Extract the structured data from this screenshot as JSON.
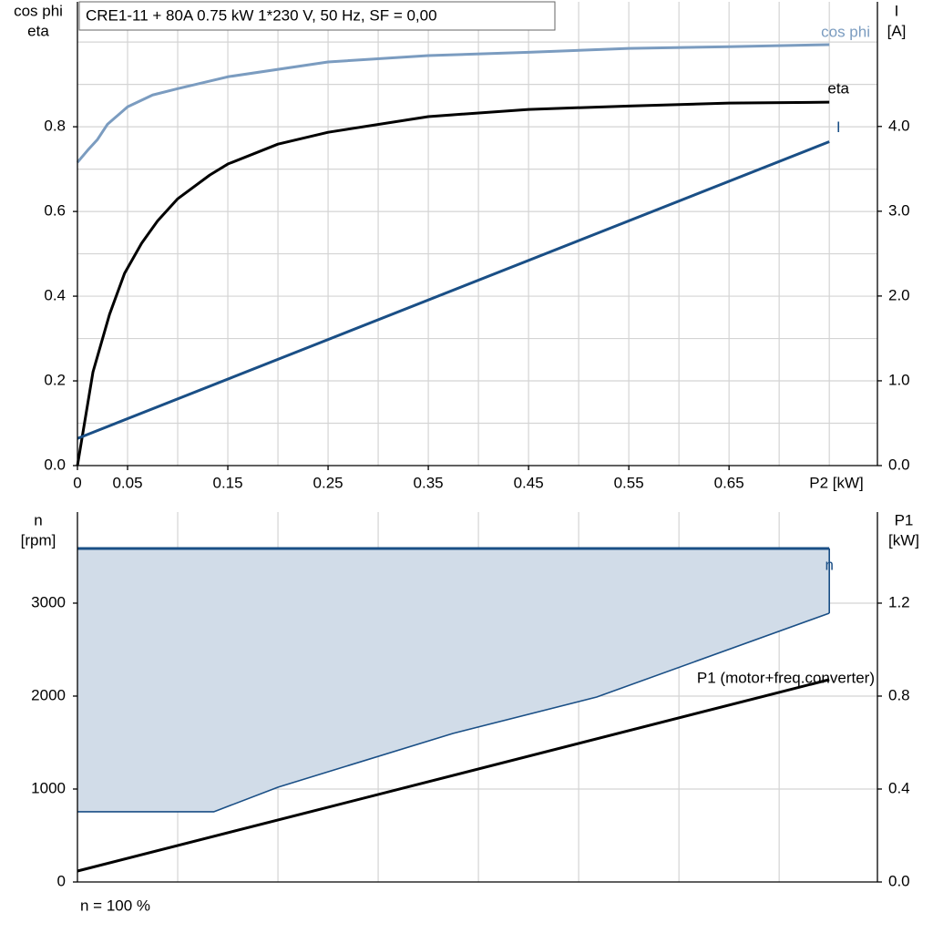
{
  "chart_data": [
    {
      "type": "line",
      "title": "CRE1-11 + 80A   0.75 kW   1*230 V, 50 Hz, SF = 0,00",
      "xlabel": "P2 [kW]",
      "ylabel": [
        "cos phi",
        "eta"
      ],
      "y2label": [
        "I",
        "[A]"
      ],
      "xlim": [
        0,
        0.798
      ],
      "xticks": [
        0,
        0.05,
        0.15,
        0.25,
        0.35,
        0.45,
        0.55,
        0.65
      ],
      "xgrid": [
        0.05,
        0.1,
        0.15,
        0.2,
        0.25,
        0.3,
        0.35,
        0.4,
        0.45,
        0.5,
        0.55,
        0.6,
        0.65,
        0.7,
        0.75
      ],
      "ylim": [
        0,
        1.095
      ],
      "yticks": [
        {
          "value": 0,
          "label": "0.0"
        },
        0.2,
        0.4,
        0.6,
        0.8
      ],
      "ygrid": [
        0.1,
        0.2,
        0.3,
        0.4,
        0.5,
        0.6,
        0.7,
        0.8,
        0.9,
        1.0
      ],
      "y2lim": [
        0,
        5.47
      ],
      "y2ticks": [
        {
          "value": 0,
          "label": "0.0"
        },
        {
          "value": 1,
          "label": "1.0"
        },
        {
          "value": 2,
          "label": "2.0"
        },
        {
          "value": 3,
          "label": "3.0"
        },
        {
          "value": 4,
          "label": "4.0"
        }
      ],
      "series": [
        {
          "name": "cos phi",
          "color": "#7b9cc0",
          "x": [
            0,
            0.01,
            0.02,
            0.03,
            0.05,
            0.075,
            0.1,
            0.15,
            0.25,
            0.35,
            0.45,
            0.55,
            0.65,
            0.75
          ],
          "values": [
            0.716,
            0.744,
            0.77,
            0.806,
            0.847,
            0.875,
            0.89,
            0.918,
            0.953,
            0.968,
            0.976,
            0.985,
            0.989,
            0.994
          ]
        },
        {
          "name": "eta",
          "color": "#000000",
          "x": [
            0,
            0.0155,
            0.032,
            0.047,
            0.064,
            0.08,
            0.1,
            0.132,
            0.15,
            0.2,
            0.25,
            0.35,
            0.45,
            0.55,
            0.65,
            0.75
          ],
          "values": [
            0,
            0.221,
            0.357,
            0.454,
            0.525,
            0.578,
            0.63,
            0.686,
            0.712,
            0.759,
            0.787,
            0.824,
            0.841,
            0.849,
            0.856,
            0.858
          ]
        },
        {
          "name": "I",
          "color": "#1a4f86",
          "axis": "y2",
          "x": [
            0,
            0.75
          ],
          "values": [
            0.32,
            3.82
          ]
        }
      ]
    },
    {
      "type": "line",
      "ylabel": [
        "n",
        "[rpm]"
      ],
      "y2label": [
        "P1",
        "[kW]"
      ],
      "note": "n = 100 %",
      "xlim": [
        0,
        0.798
      ],
      "xgrid": [
        0.1,
        0.2,
        0.3,
        0.4,
        0.5,
        0.6,
        0.7
      ],
      "ylim": [
        0,
        3980
      ],
      "yticks": [
        0,
        1000,
        2000,
        3000
      ],
      "ygrid": [
        1000,
        2000,
        3000
      ],
      "y2lim": [
        0,
        1.592
      ],
      "y2ticks": [
        {
          "value": 0,
          "label": "0.0"
        },
        0.4,
        0.8,
        1.2
      ],
      "series": [
        {
          "name": "n",
          "color": "#1a4f86",
          "fill": "#d1dce8",
          "x": [
            0,
            0.136,
            0.2,
            0.3745,
            0.518,
            0.75
          ],
          "values": [
            3588,
            3588,
            3588,
            3588,
            3588,
            3588
          ],
          "lower": [
            755,
            755,
            1020,
            1598,
            1990,
            2892
          ]
        },
        {
          "name": "P1 (motor+freq.converter)",
          "color": "#000000",
          "axis": "y2",
          "x": [
            0,
            0.75
          ],
          "values": [
            0.047,
            0.871
          ]
        }
      ]
    }
  ]
}
